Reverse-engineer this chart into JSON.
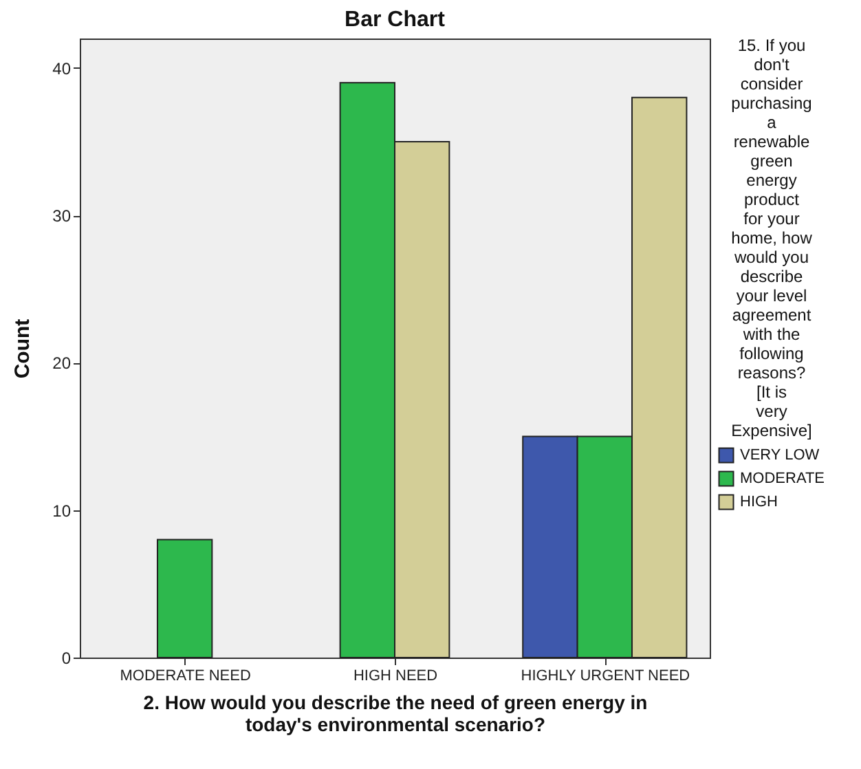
{
  "chart_data": {
    "type": "bar",
    "title": "Bar Chart",
    "xlabel": "2. How would you describe the need of green energy in today's environmental scenario?",
    "ylabel": "Count",
    "legend_title": "15. If you don't consider purchasing a renewable green energy product for your home, how would you describe your level agreement with the following reasons? [It is very Expensive]",
    "categories": [
      "MODERATE NEED",
      "HIGH NEED",
      "HIGHLY URGENT NEED"
    ],
    "series": [
      {
        "name": "VERY LOW",
        "color": "#3e58ac",
        "values": [
          null,
          null,
          15
        ]
      },
      {
        "name": "MODERATE",
        "color": "#2db84d",
        "values": [
          8,
          39,
          15
        ]
      },
      {
        "name": "HIGH",
        "color": "#d3ce97",
        "values": [
          null,
          35,
          38
        ]
      }
    ],
    "ylim": [
      0,
      42
    ],
    "yticks": [
      0,
      10,
      20,
      30,
      40
    ],
    "grid": false,
    "legend": "right"
  }
}
